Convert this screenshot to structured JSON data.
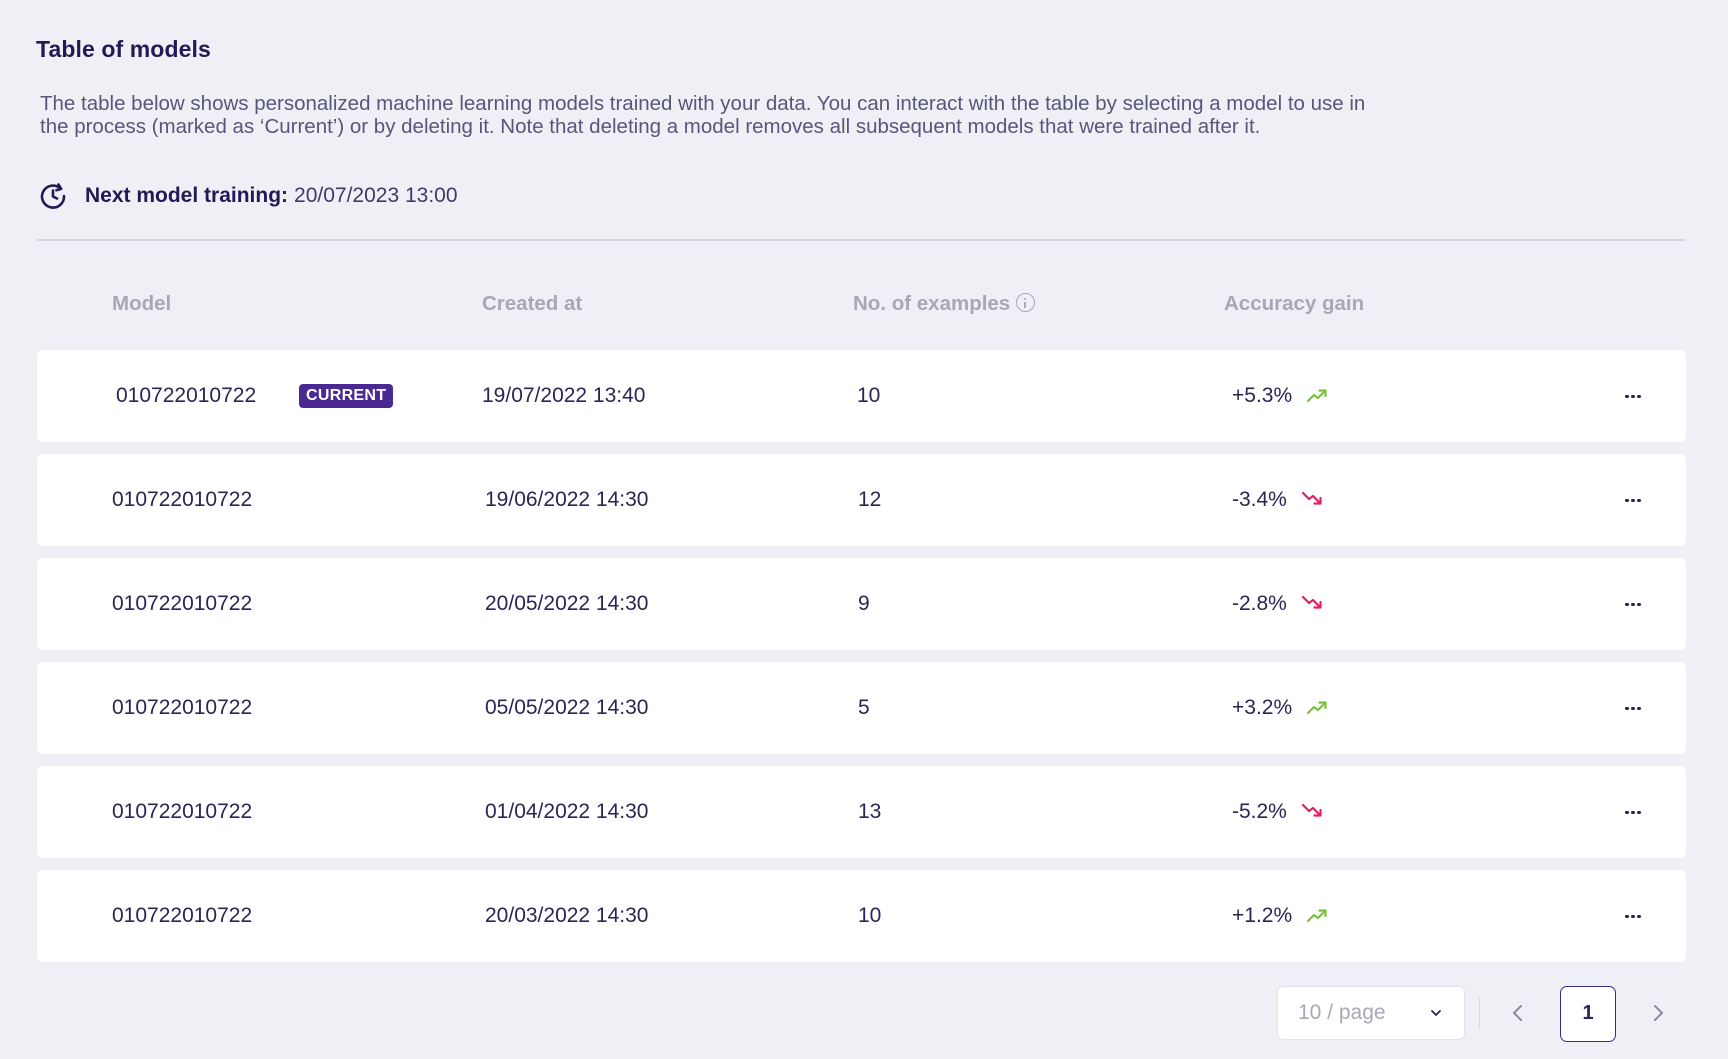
{
  "title": "Table of models",
  "description": "The table below shows personalized machine learning models trained with your data. You can interact with the table by selecting a model to use in the process (marked as ‘Current’) or by deleting it. Note that deleting a model removes all subsequent models that were trained after it.",
  "next_training": {
    "label": "Next model training:",
    "value": "20/07/2023 13:00",
    "icon": "clock-refresh-icon"
  },
  "columns": {
    "model": "Model",
    "created_at": "Created at",
    "examples": "No. of examples",
    "accuracy_gain": "Accuracy gain"
  },
  "rows": [
    {
      "model": "010722010722",
      "badge": "CURRENT",
      "created_at": "19/07/2022 13:40",
      "examples": "10",
      "gain": "+5.3%",
      "trend": "up"
    },
    {
      "model": "010722010722",
      "badge": "",
      "created_at": "19/06/2022 14:30",
      "examples": "12",
      "gain": "-3.4%",
      "trend": "down"
    },
    {
      "model": "010722010722",
      "badge": "",
      "created_at": "20/05/2022 14:30",
      "examples": "9",
      "gain": "-2.8%",
      "trend": "down"
    },
    {
      "model": "010722010722",
      "badge": "",
      "created_at": "05/05/2022 14:30",
      "examples": "5",
      "gain": "+3.2%",
      "trend": "up"
    },
    {
      "model": "010722010722",
      "badge": "",
      "created_at": "01/04/2022 14:30",
      "examples": "13",
      "gain": "-5.2%",
      "trend": "down"
    },
    {
      "model": "010722010722",
      "badge": "",
      "created_at": "20/03/2022 14:30",
      "examples": "10",
      "gain": "+1.2%",
      "trend": "up"
    }
  ],
  "pagination": {
    "page_size": "10 / page",
    "current_page": "1"
  },
  "colors": {
    "up": "#7cc23a",
    "down": "#e0206a",
    "badge": "#4a2a92",
    "accent": "#3c2a8a"
  }
}
